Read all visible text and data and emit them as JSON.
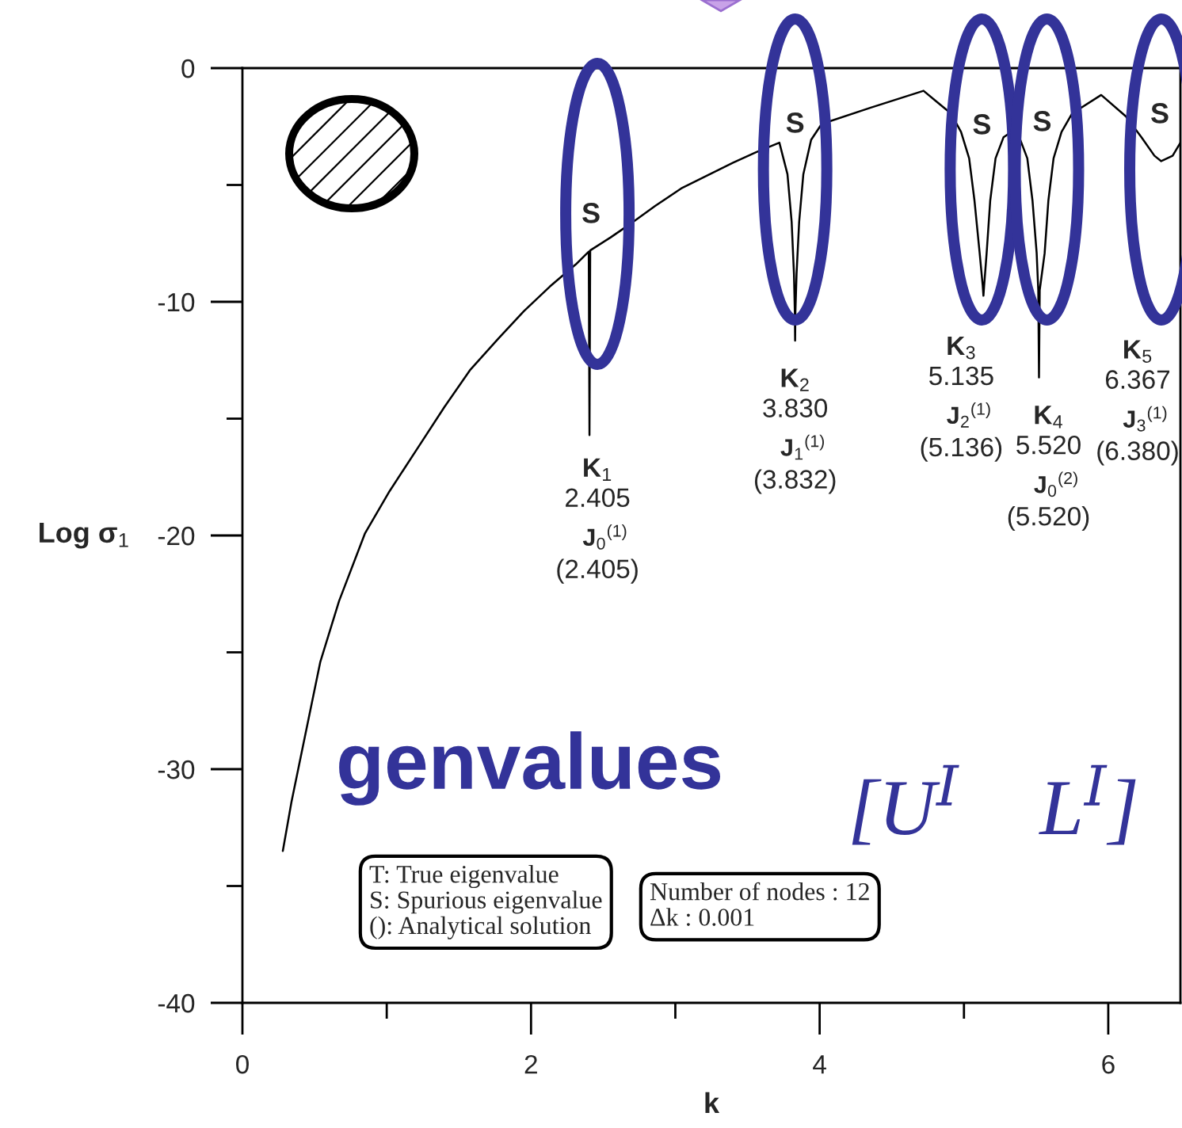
{
  "chart_data": {
    "type": "line",
    "xlabel": "k",
    "ylabel": "Log σ$_{1}$",
    "xlim": [
      0,
      6.5
    ],
    "xticks": [
      0,
      {
        "value": 1,
        "label": null
      },
      2,
      {
        "value": 3,
        "label": null
      },
      4,
      {
        "value": 5,
        "label": null
      },
      6
    ],
    "ylim": [
      -40,
      0
    ],
    "yticks": [
      -40,
      {
        "value": -35,
        "label": null
      },
      -30,
      {
        "value": -25,
        "label": null
      },
      -20,
      {
        "value": -15,
        "label": null
      },
      -10,
      {
        "value": -5,
        "label": null
      },
      0
    ],
    "series": [
      {
        "color": "#000000",
        "x": [
          0.28,
          0.34,
          0.41,
          0.54,
          0.67,
          0.85,
          1.02,
          1.21,
          1.4,
          1.58,
          1.77,
          1.95,
          2.13,
          2.31,
          2.4,
          2.405,
          2.41,
          2.55,
          2.68,
          2.86,
          3.04,
          3.22,
          3.4,
          3.56,
          3.721,
          3.777,
          3.806,
          3.822,
          3.828,
          3.83,
          3.832,
          3.84,
          3.858,
          3.887,
          3.941,
          4.014,
          4.35,
          4.72,
          4.8,
          4.91,
          4.98,
          5.036,
          5.073,
          5.109,
          5.13,
          5.135,
          5.14,
          5.157,
          5.182,
          5.219,
          5.274,
          5.329,
          5.384,
          5.439,
          5.475,
          5.504,
          5.515,
          5.52,
          5.525,
          5.559,
          5.585,
          5.621,
          5.676,
          5.75,
          5.951,
          6.121,
          6.23,
          6.32,
          6.367,
          6.446,
          6.5
        ],
        "values": [
          -33.5,
          -31.4,
          -29.3,
          -25.4,
          -22.8,
          -19.9,
          -18.1,
          -16.3,
          -14.5,
          -12.9,
          -11.6,
          -10.4,
          -9.35,
          -8.4,
          -7.85,
          -15.7,
          -7.8,
          -7.25,
          -6.7,
          -5.9,
          -5.15,
          -4.6,
          -4.05,
          -3.6,
          -3.19,
          -4.54,
          -6.58,
          -8.8,
          -10.44,
          -11.66,
          -10.44,
          -8.8,
          -6.58,
          -4.54,
          -3.07,
          -2.39,
          -1.7,
          -0.97,
          -1.38,
          -1.94,
          -2.73,
          -3.86,
          -5.67,
          -7.93,
          -9.3,
          -9.74,
          -9.3,
          -7.93,
          -5.67,
          -3.86,
          -2.96,
          -2.73,
          -2.96,
          -3.86,
          -5.67,
          -7.93,
          -9.5,
          -13.24,
          -9.5,
          -7.93,
          -5.67,
          -3.86,
          -2.73,
          -1.94,
          -1.15,
          -2.06,
          -2.96,
          -3.75,
          -3.98,
          -3.75,
          -3.19
        ]
      }
    ],
    "annotations": [
      "S",
      "S",
      "S",
      "S",
      "S",
      {
        "text": "K$_{1}$\n2.405\nJ$_{0}$$^{(1)}$\n(2.405)",
        "x": 2.405,
        "y": -15.7
      },
      {
        "text": "K$_{2}$\n3.830\nJ$_{1}$$^{(1)}$\n(3.832)",
        "x": 3.83,
        "y": -11.66
      },
      {
        "text": "K$_{3}$\n5.135\nJ$_{2}$$^{(1)}$\n(5.136)",
        "x": 5.135,
        "y": -9.74
      },
      {
        "text": "K$_{4}$\n5.520\nJ$_{0}$$^{(2)}$\n(5.520)",
        "x": 5.52,
        "y": -13.24
      },
      "K$_{5}$\n6.367\nJ$_{3}$$^{(1)}$\n(6.380)",
      "T: True eigenvalue\nS: Spurious eigenvalue\n(): Analytical solution",
      "Number of nodes : 12\nΔk : 0.001",
      "genvalues",
      "[U$^{I}$    L$^{I}$]"
    ]
  }
}
